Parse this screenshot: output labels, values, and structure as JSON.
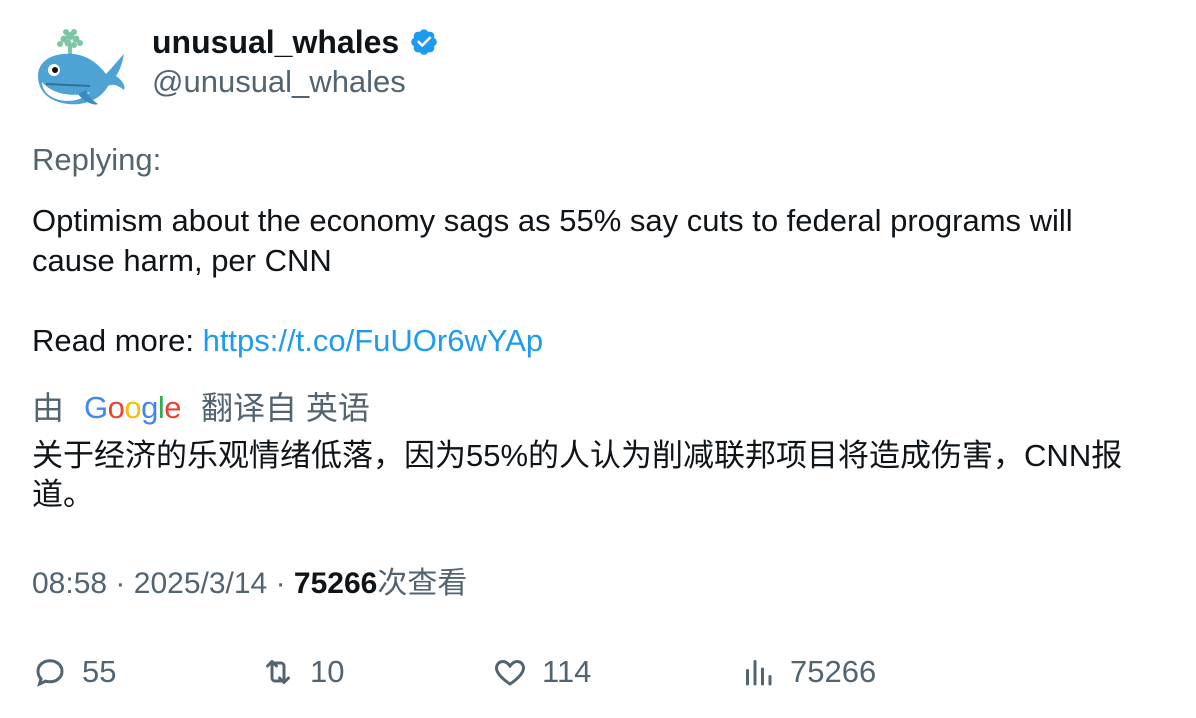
{
  "user": {
    "display_name": "unusual_whales",
    "handle": "@unusual_whales",
    "verified": true,
    "avatar_icon": "whale-icon"
  },
  "tweet": {
    "replying_label": "Replying:",
    "text": "Optimism about the economy sags as 55% say cuts to federal programs will cause harm, per CNN",
    "read_more_label": "Read more: ",
    "link": "https://t.co/FuUOr6wYAp"
  },
  "translation": {
    "prefix": "由",
    "provider": "Google",
    "suffix": "翻译自 英语",
    "text": "关于经济的乐观情绪低落，因为55%的人认为削减联邦项目将造成伤害，CNN报道。"
  },
  "meta": {
    "time": "08:58",
    "separator": "·",
    "date": "2025/3/14",
    "views": "75266",
    "views_label": "次查看"
  },
  "actions": {
    "replies": "55",
    "retweets": "10",
    "likes": "114",
    "views": "75266"
  },
  "colors": {
    "link": "#1d9bf0",
    "secondary_text": "#536471",
    "verified_badge": "#1d9bf0"
  }
}
